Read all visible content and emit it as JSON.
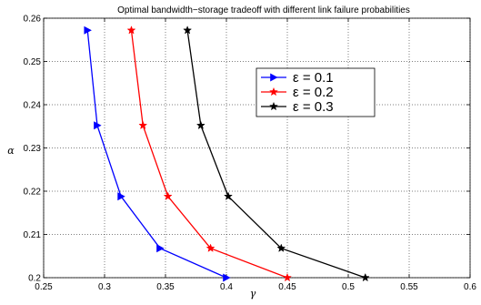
{
  "chart_data": {
    "type": "line",
    "title": "Optimal bandwidth−storage tradeoff with different link failure probabilities",
    "xlabel": "γ",
    "ylabel": "α",
    "xlim": [
      0.25,
      0.6
    ],
    "ylim": [
      0.2,
      0.26
    ],
    "x_ticks": [
      "0.25",
      "0.3",
      "0.35",
      "0.4",
      "0.45",
      "0.5",
      "0.55",
      "0.6"
    ],
    "y_ticks": [
      "0.2",
      "0.21",
      "0.22",
      "0.23",
      "0.24",
      "0.25",
      "0.26"
    ],
    "grid": true,
    "legend_position": "upper-right",
    "series": [
      {
        "name": "ε = 0.1",
        "color": "#0000ff",
        "marker": "triangle-right",
        "points": [
          {
            "x": 0.286,
            "y": 0.2572
          },
          {
            "x": 0.294,
            "y": 0.2352
          },
          {
            "x": 0.3135,
            "y": 0.2188
          },
          {
            "x": 0.3455,
            "y": 0.2068
          },
          {
            "x": 0.4,
            "y": 0.2
          }
        ]
      },
      {
        "name": "ε = 0.2",
        "color": "#ff0000",
        "marker": "star",
        "points": [
          {
            "x": 0.322,
            "y": 0.2572
          },
          {
            "x": 0.3315,
            "y": 0.2352
          },
          {
            "x": 0.352,
            "y": 0.2188
          },
          {
            "x": 0.387,
            "y": 0.2068
          },
          {
            "x": 0.45,
            "y": 0.2
          }
        ]
      },
      {
        "name": "ε = 0.3",
        "color": "#000000",
        "marker": "star",
        "points": [
          {
            "x": 0.368,
            "y": 0.2572
          },
          {
            "x": 0.379,
            "y": 0.2352
          },
          {
            "x": 0.4015,
            "y": 0.2188
          },
          {
            "x": 0.445,
            "y": 0.2068
          },
          {
            "x": 0.514,
            "y": 0.2
          }
        ]
      }
    ]
  }
}
